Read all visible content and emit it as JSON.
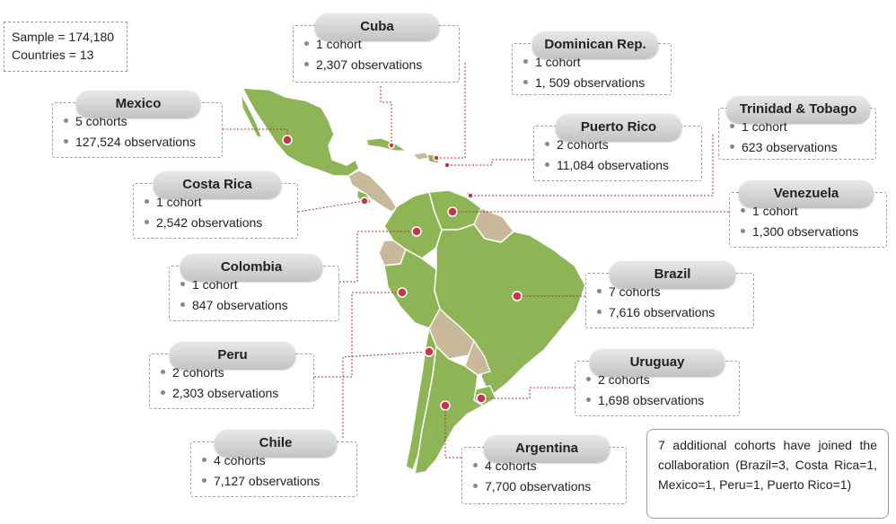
{
  "sample": {
    "sample_label": "Sample = 174,180",
    "countries_label": "Countries = 13"
  },
  "note": "7 additional cohorts have joined the collaboration (Brazil=3, Costa Rica=1, Mexico=1, Peru=1, Puerto Rico=1)",
  "colors": {
    "land": "#8db555",
    "land_secondary": "#c9b99b",
    "border": "#ffffff",
    "marker": "#c0394b",
    "connector": "#b03030"
  },
  "countries": [
    {
      "name": "Cuba",
      "cohorts": "1 cohort",
      "observations": "2,307 observations"
    },
    {
      "name": "Dominican Rep.",
      "cohorts": "1 cohort",
      "observations": "1, 509 observations"
    },
    {
      "name": "Mexico",
      "cohorts": "5 cohorts",
      "observations": "127,524 observations"
    },
    {
      "name": "Trinidad & Tobago",
      "cohorts": "1 cohort",
      "observations": "623 observations"
    },
    {
      "name": "Puerto Rico",
      "cohorts": "2 cohorts",
      "observations": "11,084 observations"
    },
    {
      "name": "Costa Rica",
      "cohorts": "1 cohort",
      "observations": "2,542 observations"
    },
    {
      "name": "Venezuela",
      "cohorts": "1 cohort",
      "observations": "1,300 observations"
    },
    {
      "name": "Colombia",
      "cohorts": "1 cohort",
      "observations": "847 observations"
    },
    {
      "name": "Brazil",
      "cohorts": "7 cohorts",
      "observations": "7,616 observations"
    },
    {
      "name": "Peru",
      "cohorts": "2 cohorts",
      "observations": "2,303 observations"
    },
    {
      "name": "Uruguay",
      "cohorts": "2 cohorts",
      "observations": "1,698 observations"
    },
    {
      "name": "Chile",
      "cohorts": "4 cohorts",
      "observations": "7,127 observations"
    },
    {
      "name": "Argentina",
      "cohorts": "4 cohorts",
      "observations": "7,700 observations"
    }
  ]
}
